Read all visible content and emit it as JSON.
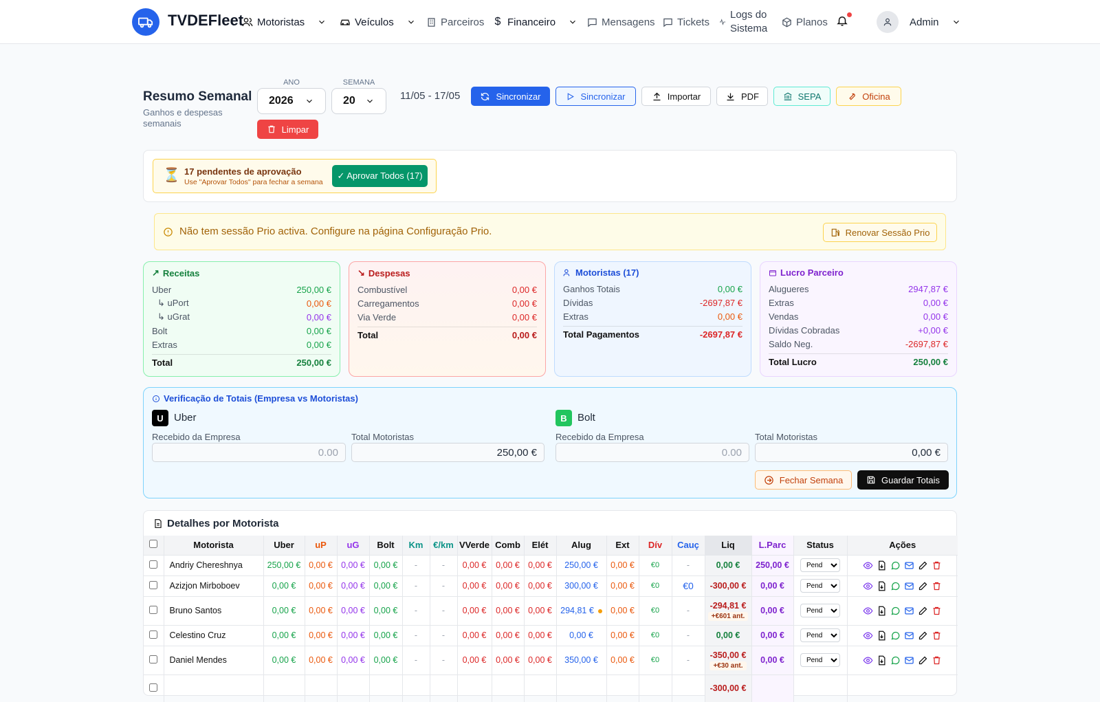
{
  "brand": "TVDEFleet",
  "nav": {
    "motoristas": "Motoristas",
    "veiculos": "Veículos",
    "parceiros": "Parceiros",
    "financeiro": "Financeiro",
    "mensagens": "Mensagens",
    "tickets": "Tickets",
    "logs_line1": "Logs do",
    "logs_line2": "Sistema",
    "planos": "Planos",
    "user": "Admin"
  },
  "page": {
    "title": "Resumo Semanal",
    "subtitle": "Ganhos e despesas semanais",
    "ano_label": "ANO",
    "ano": "2026",
    "semana_label": "SEMANA",
    "semana": "20",
    "range": "11/05 - 17/05"
  },
  "toolbar": {
    "sync1": "Sincronizar",
    "sync2": "Sincronizar",
    "import": "Importar",
    "pdf": "PDF",
    "sepa": "SEPA",
    "oficina": "Oficina",
    "limpar": "Limpar"
  },
  "pending": {
    "title": "17 pendentes de aprovação",
    "hint": "Use \"Aprovar Todos\" para fechar a semana",
    "button": "✓ Aprovar Todos (17)"
  },
  "warning": {
    "text": "Não tem sessão Prio activa. Configure na página Configuração Prio.",
    "button": "Renovar Sessão Prio"
  },
  "cards": {
    "receitas": {
      "title": "Receitas",
      "rows": [
        [
          "Uber",
          "250,00 €"
        ],
        [
          "↳ uPort",
          "0,00 €"
        ],
        [
          "↳ uGrat",
          "0,00 €"
        ],
        [
          "Bolt",
          "0,00 €"
        ],
        [
          "Extras",
          "0,00 €"
        ]
      ],
      "total": [
        "Total",
        "250,00 €"
      ]
    },
    "despesas": {
      "title": "Despesas",
      "rows": [
        [
          "Combustível",
          "0,00 €"
        ],
        [
          "Carregamentos",
          "0,00 €"
        ],
        [
          "Via Verde",
          "0,00 €"
        ]
      ],
      "total": [
        "Total",
        "0,00 €"
      ]
    },
    "motoristas": {
      "title": "Motoristas (17)",
      "rows": [
        [
          "Ganhos Totais",
          "0,00 €"
        ],
        [
          "Dívidas",
          "-2697,87 €"
        ],
        [
          "Extras",
          "0,00 €"
        ]
      ],
      "total": [
        "Total Pagamentos",
        "-2697,87 €"
      ]
    },
    "lucro": {
      "title": "Lucro Parceiro",
      "rows": [
        [
          "Alugueres",
          "2947,87 €"
        ],
        [
          "Extras",
          "0,00 €"
        ],
        [
          "Vendas",
          "0,00 €"
        ],
        [
          "Dívidas Cobradas",
          "+0,00 €"
        ],
        [
          "Saldo Neg.",
          "-2697,87 €"
        ]
      ],
      "total": [
        "Total Lucro",
        "250,00 €"
      ]
    }
  },
  "verify": {
    "title": "Verificação de Totais (Empresa vs Motoristas)",
    "uber": "Uber",
    "uber_badge": "U",
    "bolt": "Bolt",
    "bolt_badge": "B",
    "recebido": "Recebido da Empresa",
    "total_mot": "Total Motoristas",
    "uber_placeholder": "0.00",
    "uber_total": "250,00 €",
    "bolt_placeholder": "0.00",
    "bolt_total": "0,00 €",
    "fechar": "Fechar Semana",
    "guardar": "Guardar Totais"
  },
  "table": {
    "title": "Detalhes por Motorista",
    "headers": [
      "Motorista",
      "Uber",
      "uP",
      "uG",
      "Bolt",
      "Km",
      "€/km",
      "VVerde",
      "Comb",
      "Elét",
      "Alug",
      "Ext",
      "Dív",
      "Cauç",
      "Liq",
      "L.Parc",
      "Status",
      "Ações"
    ],
    "rows": [
      {
        "name": "Andriy Chereshnya",
        "uber": "250,00 €",
        "up": "0,00 €",
        "ug": "0,00 €",
        "bolt": "0,00 €",
        "km": "-",
        "ekm": "-",
        "vv": "0,00 €",
        "comb": "0,00 €",
        "elet": "0,00 €",
        "alug": "250,00 €",
        "ext": "0,00 €",
        "div": "€0",
        "cauc": "-",
        "liq": "0,00 €",
        "liqnote": "",
        "lparc": "250,00 €",
        "status": "Pend"
      },
      {
        "name": "Azizjon Mirboboev",
        "uber": "0,00 €",
        "up": "0,00 €",
        "ug": "0,00 €",
        "bolt": "0,00 €",
        "km": "-",
        "ekm": "-",
        "vv": "0,00 €",
        "comb": "0,00 €",
        "elet": "0,00 €",
        "alug": "300,00 €",
        "ext": "0,00 €",
        "div": "€0",
        "cauc": "€0",
        "liq": "-300,00 €",
        "liqnote": "",
        "lparc": "0,00 €",
        "status": "Pend"
      },
      {
        "name": "Bruno Santos",
        "uber": "0,00 €",
        "up": "0,00 €",
        "ug": "0,00 €",
        "bolt": "0,00 €",
        "km": "-",
        "ekm": "-",
        "vv": "0,00 €",
        "comb": "0,00 €",
        "elet": "0,00 €",
        "alug": "294,81 €",
        "ext": "0,00 €",
        "div": "€0",
        "cauc": "-",
        "liq": "-294,81 €",
        "liqnote": "+€601 ant.",
        "lparc": "0,00 €",
        "status": "Pend"
      },
      {
        "name": "Celestino Cruz",
        "uber": "0,00 €",
        "up": "0,00 €",
        "ug": "0,00 €",
        "bolt": "0,00 €",
        "km": "-",
        "ekm": "-",
        "vv": "0,00 €",
        "comb": "0,00 €",
        "elet": "0,00 €",
        "alug": "0,00 €",
        "ext": "0,00 €",
        "div": "€0",
        "cauc": "-",
        "liq": "0,00 €",
        "liqnote": "",
        "lparc": "0,00 €",
        "status": "Pend"
      },
      {
        "name": "Daniel Mendes",
        "uber": "0,00 €",
        "up": "0,00 €",
        "ug": "0,00 €",
        "bolt": "0,00 €",
        "km": "-",
        "ekm": "-",
        "vv": "0,00 €",
        "comb": "0,00 €",
        "elet": "0,00 €",
        "alug": "350,00 €",
        "ext": "0,00 €",
        "div": "€0",
        "cauc": "-",
        "liq": "-350,00 €",
        "liqnote": "+€30 ant.",
        "lparc": "0,00 €",
        "status": "Pend"
      },
      {
        "name": "",
        "uber": "",
        "up": "",
        "ug": "",
        "bolt": "",
        "km": "",
        "ekm": "",
        "vv": "",
        "comb": "",
        "elet": "",
        "alug": "",
        "ext": "",
        "div": "",
        "cauc": "",
        "liq": "-300,00 €",
        "liqnote": "",
        "lparc": "",
        "status": ""
      }
    ]
  },
  "colors": {
    "primary": "#2563eb",
    "success": "#16a34a",
    "danger": "#dc2626",
    "warning": "#ea580c"
  }
}
